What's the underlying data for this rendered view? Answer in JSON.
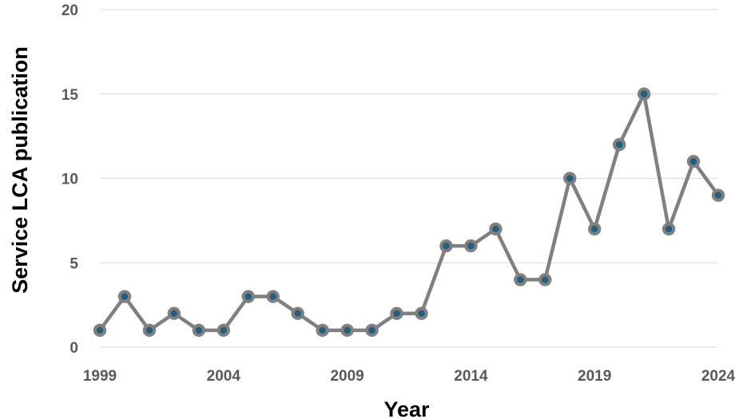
{
  "chart_data": {
    "type": "line",
    "title": "",
    "xlabel": "Year",
    "ylabel": "Service LCA publication",
    "x": [
      1999,
      2000,
      2001,
      2002,
      2003,
      2004,
      2005,
      2006,
      2007,
      2008,
      2009,
      2010,
      2011,
      2012,
      2013,
      2014,
      2015,
      2016,
      2017,
      2018,
      2019,
      2020,
      2021,
      2022,
      2023,
      2024
    ],
    "values": [
      1,
      3,
      1,
      2,
      1,
      1,
      3,
      3,
      2,
      1,
      1,
      1,
      2,
      2,
      6,
      6,
      7,
      4,
      4,
      10,
      7,
      12,
      15,
      7,
      11,
      9
    ],
    "xlim": [
      1999,
      2024
    ],
    "ylim": [
      0,
      20
    ],
    "x_ticks": [
      "1999",
      "2004",
      "2009",
      "2014",
      "2019",
      "2024"
    ],
    "y_ticks": [
      "0",
      "5",
      "10",
      "15",
      "20"
    ],
    "grid": "horizontal",
    "legend": "none",
    "colors": {
      "line": "#808080",
      "marker_ring": "#808080",
      "marker_fill": "#1f5f7f",
      "grid": "#d9d9d9",
      "tick_text": "#595959",
      "axis_title": "#000000"
    }
  }
}
